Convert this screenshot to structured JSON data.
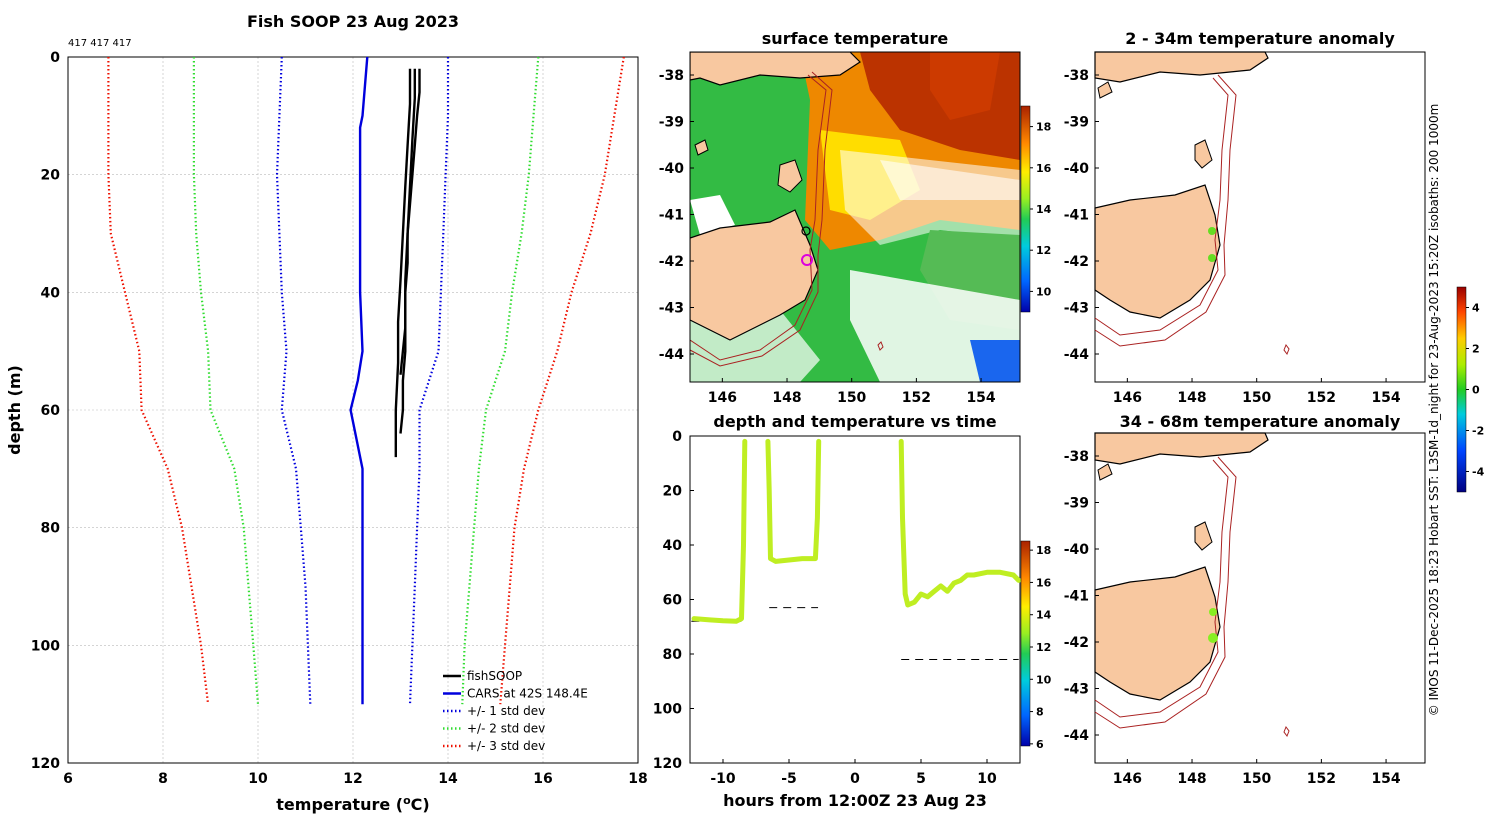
{
  "profile": {
    "title": "Fish SOOP 23 Aug 2023",
    "counts_label": "417 417 417",
    "xlabel": "temperature (",
    "xlabel_sup": "o",
    "xlabel_end": "C)",
    "ylabel": "depth (m)",
    "xlim": [
      6,
      18
    ],
    "ylim": [
      0,
      120
    ],
    "xticks": [
      6,
      8,
      10,
      12,
      14,
      16,
      18
    ],
    "yticks": [
      0,
      20,
      40,
      60,
      80,
      100,
      120
    ],
    "legend": [
      {
        "label": "fishSOOP",
        "color": "#000000",
        "dash": "solid"
      },
      {
        "label": "CARS at 42S 148.4E",
        "color": "#0000dd",
        "dash": "solid"
      },
      {
        "label": "+/- 1 std dev",
        "color": "#0000dd",
        "dash": "dot"
      },
      {
        "label": "+/- 2 std dev",
        "color": "#33dd33",
        "dash": "dot"
      },
      {
        "label": "+/- 3 std dev",
        "color": "#ee1100",
        "dash": "dot"
      }
    ]
  },
  "sst_map": {
    "title": "surface temperature",
    "xticks": [
      "146",
      "148",
      "150",
      "152",
      "154"
    ],
    "yticks": [
      "-38",
      "-39",
      "-40",
      "-41",
      "-42",
      "-43",
      "-44"
    ],
    "colorbar_ticks": [
      "18",
      "16",
      "14",
      "12",
      "10"
    ]
  },
  "time_plot": {
    "title": "depth and temperature vs time",
    "xlabel": "hours from 12:00Z 23 Aug 23",
    "xticks": [
      -10,
      -5,
      0,
      5,
      10
    ],
    "yticks": [
      0,
      20,
      40,
      60,
      80,
      100,
      120
    ],
    "xlim": [
      -12.5,
      12.5
    ],
    "ylim": [
      0,
      120
    ],
    "colorbar_ticks": [
      "18",
      "16",
      "14",
      "12",
      "10",
      "8",
      "6"
    ]
  },
  "anom_map_1": {
    "title": "2 - 34m temperature anomaly",
    "xticks": [
      "146",
      "148",
      "150",
      "152",
      "154"
    ],
    "yticks": [
      "-38",
      "-39",
      "-40",
      "-41",
      "-42",
      "-43",
      "-44"
    ]
  },
  "anom_map_2": {
    "title": "34 - 68m temperature anomaly",
    "xticks": [
      "146",
      "148",
      "150",
      "152",
      "154"
    ],
    "yticks": [
      "-38",
      "-39",
      "-40",
      "-41",
      "-42",
      "-43",
      "-44"
    ]
  },
  "anom_colorbar": {
    "ticks": [
      "4",
      "2",
      "0",
      "-2",
      "-4"
    ]
  },
  "credit": "© IMOS 11-Dec-2025 18:23 Hobart SST: L3SM-1d_night for 23-Aug-2023 15:20Z isobaths: 200  1000m",
  "chart_data": [
    {
      "type": "line",
      "title": "Fish SOOP 23 Aug 2023",
      "xlabel": "temperature (oC)",
      "ylabel": "depth (m)",
      "xlim": [
        6,
        18
      ],
      "ylim": [
        0,
        120
      ],
      "y_inverted": true,
      "series": [
        {
          "name": "fishSOOP",
          "color": "#000000",
          "dash": "solid",
          "points": [
            [
              13.4,
              2
            ],
            [
              13.4,
              6
            ],
            [
              13.35,
              10
            ],
            [
              13.3,
              15
            ],
            [
              13.25,
              20
            ],
            [
              13.2,
              25
            ],
            [
              13.15,
              30
            ],
            [
              13.15,
              35
            ],
            [
              13.1,
              40
            ],
            [
              13.1,
              45
            ],
            [
              13.1,
              50
            ],
            [
              13.05,
              55
            ],
            [
              13.05,
              60
            ],
            [
              13.0,
              64
            ]
          ]
        },
        {
          "name": "fishSOOP 2",
          "color": "#000000",
          "dash": "solid",
          "points": [
            [
              13.2,
              2
            ],
            [
              13.2,
              8
            ],
            [
              13.15,
              15
            ],
            [
              13.1,
              22
            ],
            [
              13.05,
              30
            ],
            [
              13.0,
              38
            ],
            [
              12.95,
              45
            ],
            [
              12.95,
              52
            ],
            [
              12.9,
              60
            ],
            [
              12.9,
              68
            ]
          ]
        },
        {
          "name": "fishSOOP 3",
          "color": "#000000",
          "dash": "solid",
          "points": [
            [
              13.3,
              2
            ],
            [
              13.3,
              7
            ],
            [
              13.25,
              14
            ],
            [
              13.2,
              22
            ],
            [
              13.15,
              30
            ],
            [
              13.1,
              38
            ],
            [
              13.1,
              46
            ],
            [
              13.0,
              54
            ]
          ]
        },
        {
          "name": "CARS at 42S 148.4E",
          "color": "#0000dd",
          "dash": "solid",
          "points": [
            [
              12.3,
              0
            ],
            [
              12.25,
              5
            ],
            [
              12.2,
              10
            ],
            [
              12.15,
              12
            ],
            [
              12.15,
              20
            ],
            [
              12.15,
              30
            ],
            [
              12.15,
              40
            ],
            [
              12.2,
              50
            ],
            [
              12.1,
              55
            ],
            [
              11.95,
              60
            ],
            [
              12.2,
              70
            ],
            [
              12.2,
              80
            ],
            [
              12.2,
              90
            ],
            [
              12.2,
              100
            ],
            [
              12.2,
              110
            ]
          ]
        },
        {
          "name": "CARS -1 std",
          "color": "#0000dd",
          "dash": "dot",
          "points": [
            [
              10.5,
              0
            ],
            [
              10.45,
              10
            ],
            [
              10.4,
              20
            ],
            [
              10.45,
              30
            ],
            [
              10.5,
              40
            ],
            [
              10.6,
              50
            ],
            [
              10.5,
              60
            ],
            [
              10.8,
              70
            ],
            [
              10.9,
              80
            ],
            [
              11.0,
              90
            ],
            [
              11.05,
              100
            ],
            [
              11.1,
              110
            ]
          ]
        },
        {
          "name": "CARS +1 std",
          "color": "#0000dd",
          "dash": "dot",
          "points": [
            [
              14.0,
              0
            ],
            [
              14.0,
              10
            ],
            [
              13.95,
              20
            ],
            [
              13.9,
              30
            ],
            [
              13.85,
              40
            ],
            [
              13.8,
              50
            ],
            [
              13.4,
              60
            ],
            [
              13.4,
              70
            ],
            [
              13.35,
              80
            ],
            [
              13.3,
              90
            ],
            [
              13.25,
              100
            ],
            [
              13.2,
              110
            ]
          ]
        },
        {
          "name": "CARS -2 std",
          "color": "#33dd33",
          "dash": "dot",
          "points": [
            [
              8.65,
              0
            ],
            [
              8.65,
              10
            ],
            [
              8.65,
              20
            ],
            [
              8.7,
              30
            ],
            [
              8.8,
              40
            ],
            [
              8.95,
              50
            ],
            [
              9.0,
              60
            ],
            [
              9.5,
              70
            ],
            [
              9.7,
              80
            ],
            [
              9.8,
              90
            ],
            [
              9.9,
              100
            ],
            [
              10.0,
              110
            ]
          ]
        },
        {
          "name": "CARS +2 std",
          "color": "#33dd33",
          "dash": "dot",
          "points": [
            [
              15.9,
              0
            ],
            [
              15.8,
              10
            ],
            [
              15.7,
              20
            ],
            [
              15.55,
              30
            ],
            [
              15.35,
              40
            ],
            [
              15.2,
              50
            ],
            [
              14.8,
              60
            ],
            [
              14.65,
              70
            ],
            [
              14.55,
              80
            ],
            [
              14.45,
              90
            ],
            [
              14.35,
              100
            ],
            [
              14.3,
              110
            ]
          ]
        },
        {
          "name": "CARS -3 std",
          "color": "#ee1100",
          "dash": "dot",
          "points": [
            [
              6.85,
              0
            ],
            [
              6.85,
              10
            ],
            [
              6.85,
              20
            ],
            [
              6.9,
              30
            ],
            [
              7.2,
              40
            ],
            [
              7.5,
              50
            ],
            [
              7.55,
              60
            ],
            [
              8.1,
              70
            ],
            [
              8.4,
              80
            ],
            [
              8.6,
              90
            ],
            [
              8.8,
              100
            ],
            [
              8.95,
              110
            ]
          ]
        },
        {
          "name": "CARS +3 std",
          "color": "#ee1100",
          "dash": "dot",
          "points": [
            [
              17.7,
              0
            ],
            [
              17.5,
              10
            ],
            [
              17.3,
              20
            ],
            [
              17.0,
              30
            ],
            [
              16.6,
              40
            ],
            [
              16.3,
              50
            ],
            [
              15.9,
              60
            ],
            [
              15.6,
              70
            ],
            [
              15.4,
              80
            ],
            [
              15.3,
              90
            ],
            [
              15.2,
              100
            ],
            [
              15.1,
              110
            ]
          ]
        }
      ]
    },
    {
      "type": "scatter",
      "title": "depth and temperature vs time",
      "xlabel": "hours from 12:00Z 23 Aug 23",
      "ylabel": "depth (m)",
      "xlim": [
        -12.5,
        12.5
      ],
      "ylim": [
        0,
        120
      ],
      "y_inverted": true,
      "series": [
        {
          "name": "track 1",
          "color": "#bfee22",
          "points": [
            [
              -12.2,
              67
            ],
            [
              -11,
              67.5
            ],
            [
              -10,
              67.8
            ],
            [
              -9,
              68
            ],
            [
              -8.6,
              67
            ],
            [
              -8.45,
              40
            ],
            [
              -8.35,
              2
            ]
          ]
        },
        {
          "name": "track 2",
          "color": "#bfee22",
          "points": [
            [
              -6.6,
              2
            ],
            [
              -6.5,
              20
            ],
            [
              -6.4,
              45
            ],
            [
              -6,
              46
            ],
            [
              -5,
              45.5
            ],
            [
              -4,
              45
            ],
            [
              -3,
              45
            ],
            [
              -2.85,
              30
            ],
            [
              -2.75,
              2
            ]
          ]
        },
        {
          "name": "track 3",
          "color": "#bfee22",
          "points": [
            [
              3.5,
              2
            ],
            [
              3.6,
              30
            ],
            [
              3.8,
              58
            ],
            [
              4,
              62
            ],
            [
              4.5,
              61
            ],
            [
              5,
              58
            ],
            [
              5.5,
              59
            ],
            [
              6,
              57
            ],
            [
              6.5,
              55
            ],
            [
              7,
              57
            ],
            [
              7.5,
              54
            ],
            [
              8,
              53
            ],
            [
              8.5,
              51
            ],
            [
              9,
              51
            ],
            [
              10,
              50
            ],
            [
              11,
              50
            ],
            [
              12,
              51
            ],
            [
              12.4,
              53
            ]
          ]
        }
      ],
      "bottom_depth": [
        {
          "x": [
            -12.4,
            -8.5
          ],
          "y": 68
        },
        {
          "x": [
            -6.5,
            -2.8
          ],
          "y": 63
        },
        {
          "x": [
            3.5,
            12.4
          ],
          "y": 82
        }
      ]
    }
  ]
}
